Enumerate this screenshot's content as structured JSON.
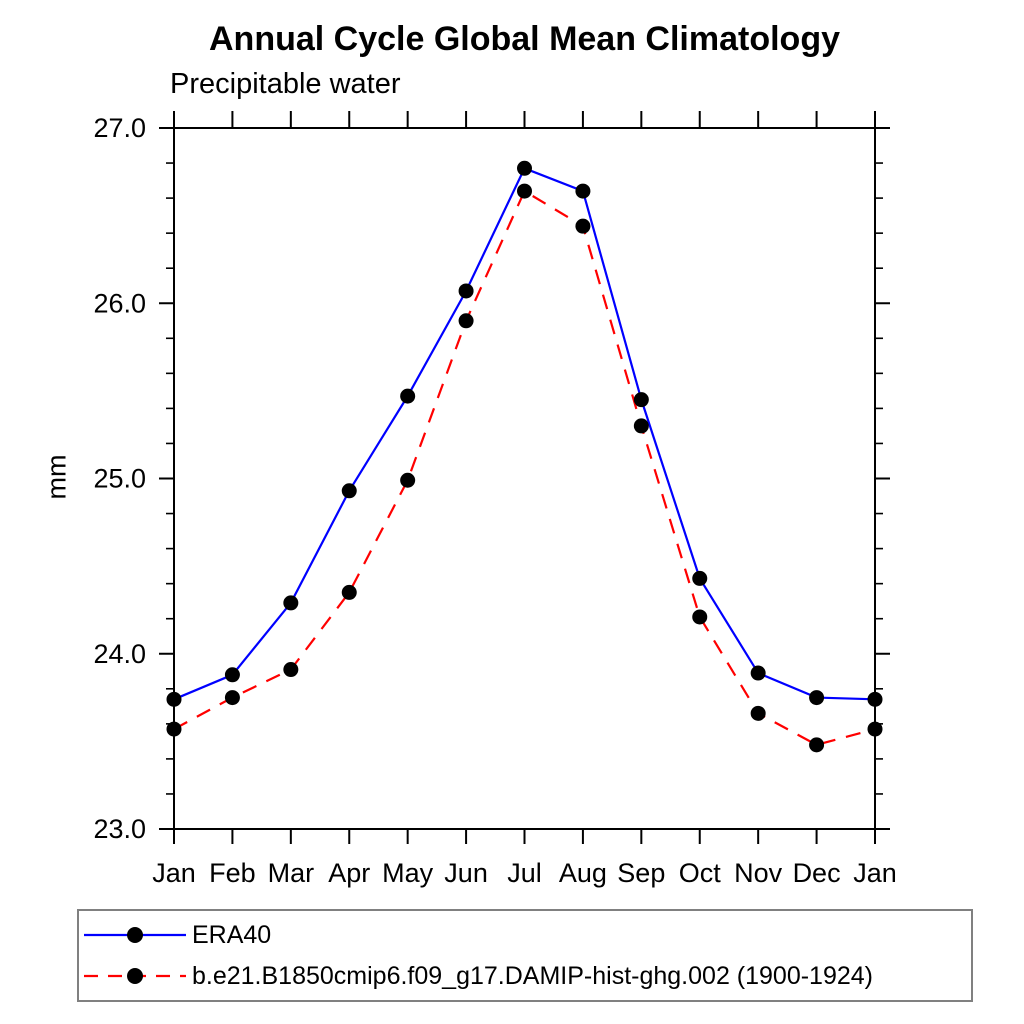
{
  "chart_data": {
    "type": "line",
    "title": "Annual Cycle Global Mean Climatology",
    "subtitle": "Precipitable water",
    "xlabel": "",
    "ylabel": "mm",
    "categories": [
      "Jan",
      "Feb",
      "Mar",
      "Apr",
      "May",
      "Jun",
      "Jul",
      "Aug",
      "Sep",
      "Oct",
      "Nov",
      "Dec",
      "Jan"
    ],
    "ylim": [
      23.0,
      27.0
    ],
    "ytick_major": [
      23.0,
      24.0,
      25.0,
      26.0,
      27.0
    ],
    "ytick_minor_step": 0.2,
    "ytick_label_format": "one-decimal",
    "grid": false,
    "legend_position": "bottom",
    "axis_color": "#000000",
    "marker_color": "#000000",
    "series": [
      {
        "name": "ERA40",
        "color": "#0000ff",
        "style": "solid",
        "marker": "circle",
        "values": [
          23.74,
          23.88,
          24.29,
          24.93,
          25.47,
          26.07,
          26.77,
          26.64,
          25.45,
          24.43,
          23.89,
          23.75,
          23.74
        ]
      },
      {
        "name": "b.e21.B1850cmip6.f09_g17.DAMIP-hist-ghg.002 (1900-1924)",
        "color": "#ff0000",
        "style": "dashed",
        "marker": "circle",
        "values": [
          23.57,
          23.75,
          23.91,
          24.35,
          24.99,
          25.9,
          26.64,
          26.44,
          25.3,
          24.21,
          23.66,
          23.48,
          23.57
        ]
      }
    ]
  }
}
